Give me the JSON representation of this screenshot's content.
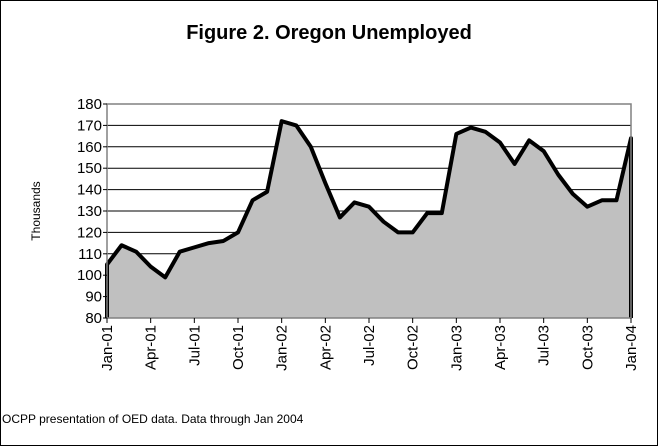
{
  "chart_data": {
    "type": "area",
    "title": "Figure 2. Oregon Unemployed",
    "ylabel": "Thousands",
    "xlabel": "",
    "ylim": [
      80,
      180
    ],
    "yticks": [
      80,
      90,
      100,
      110,
      120,
      130,
      140,
      150,
      160,
      170,
      180
    ],
    "x_tick_labels": [
      "Jan-01",
      "Apr-01",
      "Jul-01",
      "Oct-01",
      "Jan-02",
      "Apr-02",
      "Jul-02",
      "Oct-02",
      "Jan-03",
      "Apr-03",
      "Jul-03",
      "Oct-03",
      "Jan-04"
    ],
    "x": [
      "Jan-01",
      "Feb-01",
      "Mar-01",
      "Apr-01",
      "May-01",
      "Jun-01",
      "Jul-01",
      "Aug-01",
      "Sep-01",
      "Oct-01",
      "Nov-01",
      "Dec-01",
      "Jan-02",
      "Feb-02",
      "Mar-02",
      "Apr-02",
      "May-02",
      "Jun-02",
      "Jul-02",
      "Aug-02",
      "Sep-02",
      "Oct-02",
      "Nov-02",
      "Dec-02",
      "Jan-03",
      "Feb-03",
      "Mar-03",
      "Apr-03",
      "May-03",
      "Jun-03",
      "Jul-03",
      "Aug-03",
      "Sep-03",
      "Oct-03",
      "Nov-03",
      "Dec-03",
      "Jan-04"
    ],
    "values": [
      105,
      114,
      111,
      104,
      99,
      111,
      113,
      115,
      116,
      120,
      135,
      139,
      172,
      170,
      160,
      143,
      127,
      134,
      132,
      125,
      120,
      120,
      129,
      129,
      166,
      169,
      167,
      162,
      152,
      163,
      158,
      147,
      138,
      132,
      135,
      135,
      164
    ],
    "area_fill": "#c0c0c0",
    "line_color": "#000000",
    "plot_bg": "#ffffff",
    "grid": true,
    "legend": "none"
  },
  "note": "OCPP presentation of OED data. Data through Jan 2004"
}
